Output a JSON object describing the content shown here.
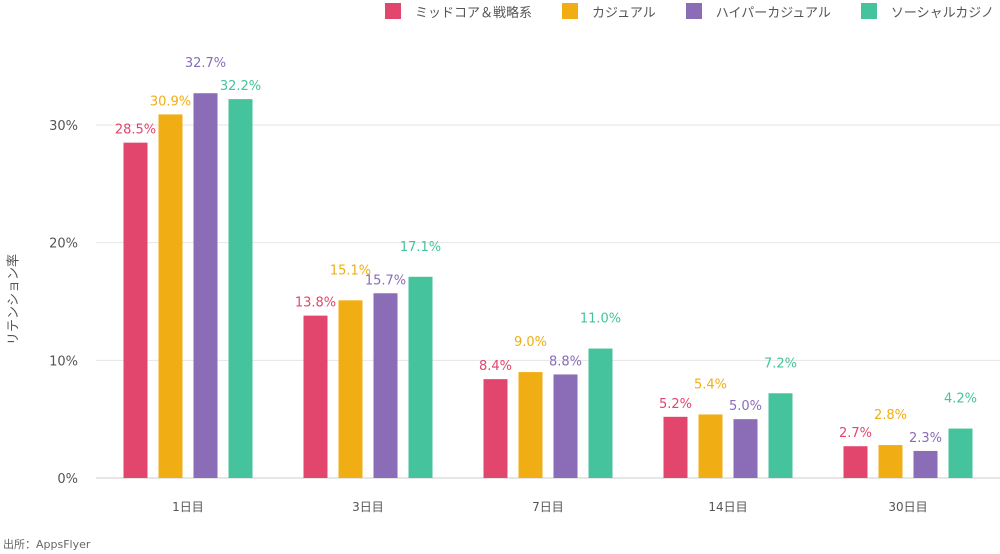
{
  "chart_data": {
    "type": "bar",
    "categories": [
      "1日目",
      "3日目",
      "7日目",
      "14日目",
      "30日目"
    ],
    "series": [
      {
        "name": "ミッドコア＆戦略系",
        "color": "#e2466c",
        "values": [
          28.5,
          13.8,
          8.4,
          5.2,
          2.7
        ],
        "labels": [
          "28.5%",
          "13.8%",
          "8.4%",
          "5.2%",
          "2.7%"
        ]
      },
      {
        "name": "カジュアル",
        "color": "#f1ae14",
        "values": [
          30.9,
          15.1,
          9.0,
          5.4,
          2.8
        ],
        "labels": [
          "30.9%",
          "15.1%",
          "9.0%",
          "5.4%",
          "2.8%"
        ]
      },
      {
        "name": "ハイパーカジュアル",
        "color": "#8a6cb7",
        "values": [
          32.7,
          15.7,
          8.8,
          5.0,
          2.3
        ],
        "labels": [
          "32.7%",
          "15.7%",
          "8.8%",
          "5.0%",
          "2.3%"
        ]
      },
      {
        "name": "ソーシャルカジノ",
        "color": "#45c39d",
        "values": [
          32.2,
          17.1,
          11.0,
          7.2,
          4.2
        ],
        "labels": [
          "32.2%",
          "17.1%",
          "11.0%",
          "7.2%",
          "4.2%"
        ]
      }
    ],
    "ylabel": "リテンション率",
    "xlabel": "",
    "ylim": [
      0,
      30
    ],
    "yticks": [
      "0%",
      "10%",
      "20%",
      "30%"
    ],
    "grid": true,
    "legend": "top-right",
    "source": "出所：AppsFlyer"
  }
}
